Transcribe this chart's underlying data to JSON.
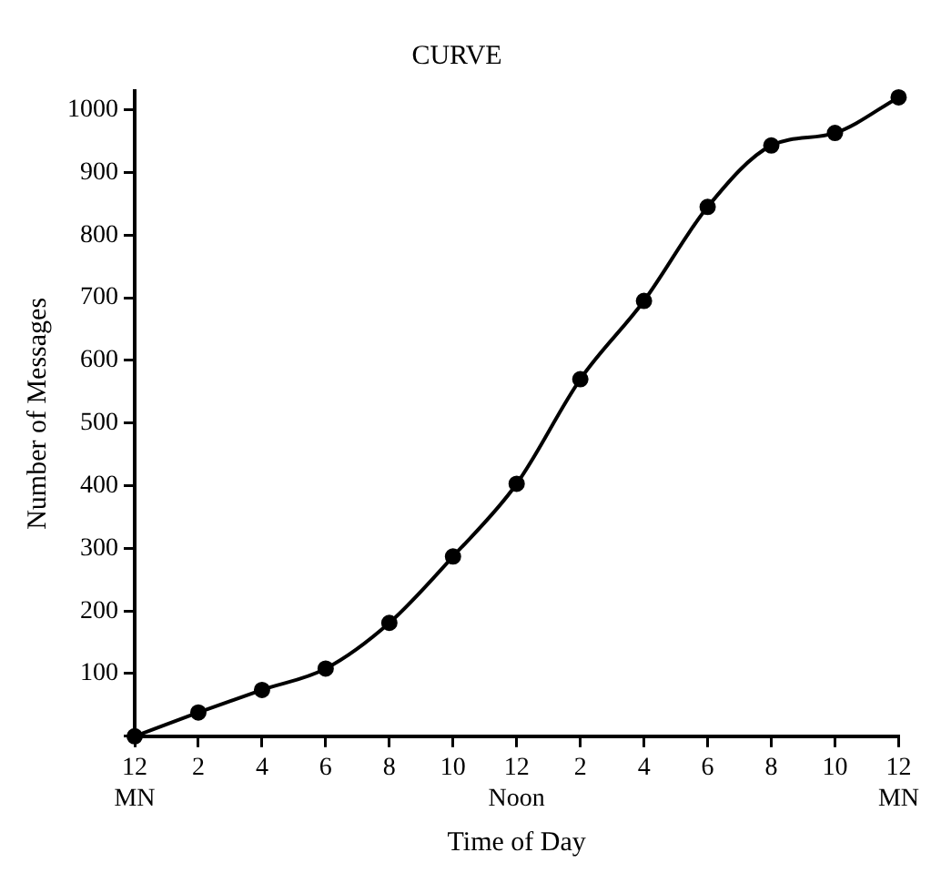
{
  "chart_data": {
    "type": "line",
    "title": "CURVE",
    "xlabel": "Time of Day",
    "ylabel": "Number of Messages",
    "categories": [
      "12\nMN",
      "2",
      "4",
      "6",
      "8",
      "10",
      "12\nNoon",
      "2",
      "4",
      "6",
      "8",
      "10",
      "12\nMN"
    ],
    "series": [
      {
        "color": "#000000",
        "values": [
          0,
          38,
          74,
          108,
          181,
          287,
          403,
          570,
          695,
          845,
          943,
          963,
          1020
        ]
      }
    ],
    "ylim": [
      0,
      1030
    ],
    "yticks": [
      {
        "value": 0,
        "label": null
      },
      100,
      200,
      300,
      400,
      500,
      600,
      700,
      800,
      900,
      1000
    ],
    "grid": false,
    "legend": false,
    "marker": "circle",
    "line_style": "solid"
  }
}
